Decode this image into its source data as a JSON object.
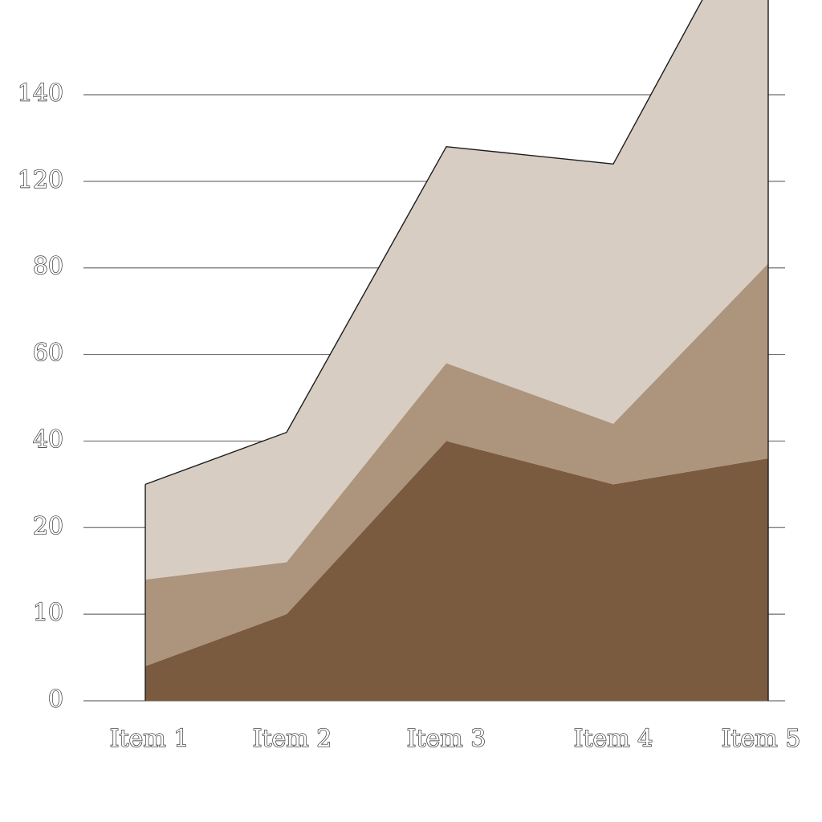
{
  "chart_data": {
    "type": "area",
    "stacked": true,
    "categories": [
      "Item 1",
      "Item 2",
      "Item 3",
      "Item 4",
      "Item 5"
    ],
    "series": [
      {
        "values": [
          4,
          10,
          40,
          30,
          36
        ],
        "color": "#7b5b3f"
      },
      {
        "values": [
          10,
          6,
          18,
          14,
          46
        ],
        "color": "#ad947c"
      },
      {
        "values": [
          16,
          26,
          70,
          80,
          108
        ],
        "color": "#d7cdc3"
      }
    ],
    "stack_totals": [
      30,
      42,
      128,
      124,
      190
    ],
    "y_axis": {
      "tick_labels": [
        "0",
        "10",
        "20",
        "40",
        "60",
        "80",
        "120",
        "140"
      ],
      "note": "tick labels are printed unevenly; gridlines are evenly spaced"
    },
    "title": "",
    "xlabel": "",
    "ylabel": "",
    "grid": true,
    "legend": "none"
  }
}
